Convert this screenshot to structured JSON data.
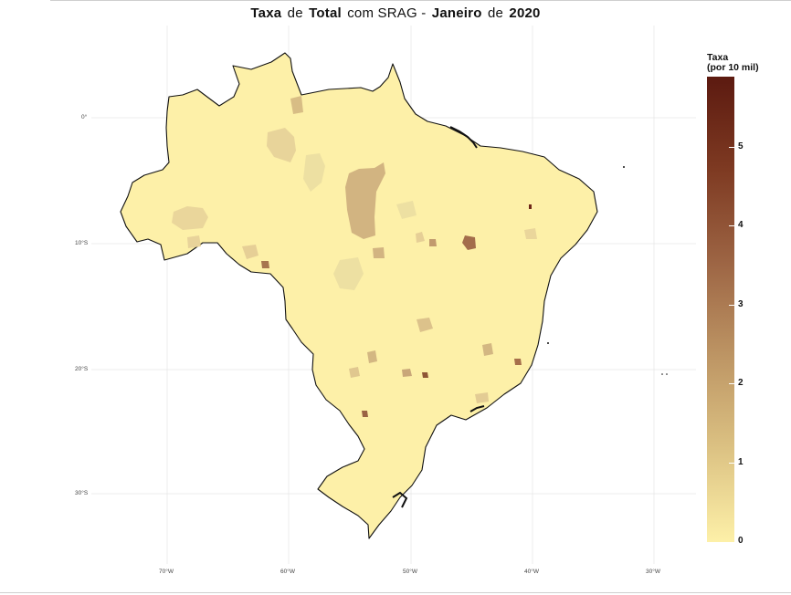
{
  "title": {
    "part1": "Taxa",
    "part2": "de",
    "part3": "Total",
    "part4": "com SRAG -",
    "part5": "Janeiro",
    "part6": "de",
    "part7": "2020"
  },
  "legend": {
    "title_line1": "Taxa",
    "title_line2": "(por 10 mil)",
    "ticks": [
      "5",
      "4",
      "3",
      "2",
      "1",
      "0"
    ],
    "colors": {
      "high": "#5c1a10",
      "mid": "#bd9564",
      "low": "#fdf0a8"
    }
  },
  "axes": {
    "latitude_labels": [
      "0°",
      "10°S",
      "20°S",
      "30°S"
    ],
    "longitude_labels": [
      "70°W",
      "60°W",
      "50°W",
      "40°W",
      "30°W"
    ]
  },
  "map": {
    "region": "Brazil",
    "base_fill": "#fdf0a8",
    "border_color": "#111111"
  }
}
